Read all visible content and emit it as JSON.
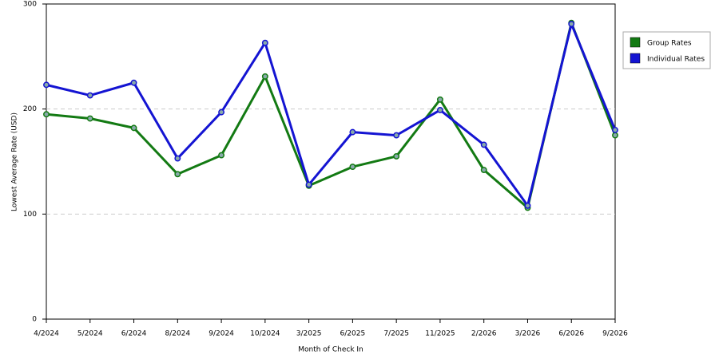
{
  "chart_data": {
    "type": "line",
    "x_label": "Month of Check In",
    "y_label": "Lowest Average Rate (USD)",
    "categories": [
      "4/2024",
      "5/2024",
      "6/2024",
      "8/2024",
      "9/2024",
      "10/2024",
      "3/2025",
      "6/2025",
      "7/2025",
      "11/2025",
      "2/2026",
      "3/2026",
      "6/2026",
      "9/2026"
    ],
    "series": [
      {
        "name": "Group Rates",
        "color": "#137a13",
        "values": [
          195,
          191,
          182,
          138,
          156,
          231,
          127,
          145,
          155,
          209,
          142,
          106,
          282,
          175
        ]
      },
      {
        "name": "Individual Rates",
        "color": "#1414d2",
        "values": [
          223,
          213,
          225,
          153,
          197,
          263,
          128,
          178,
          175,
          199,
          166,
          108,
          281,
          180
        ]
      }
    ],
    "ylim": [
      0,
      300
    ],
    "yticks": [
      0,
      100,
      200,
      300
    ],
    "grid": true,
    "legend": "right"
  }
}
